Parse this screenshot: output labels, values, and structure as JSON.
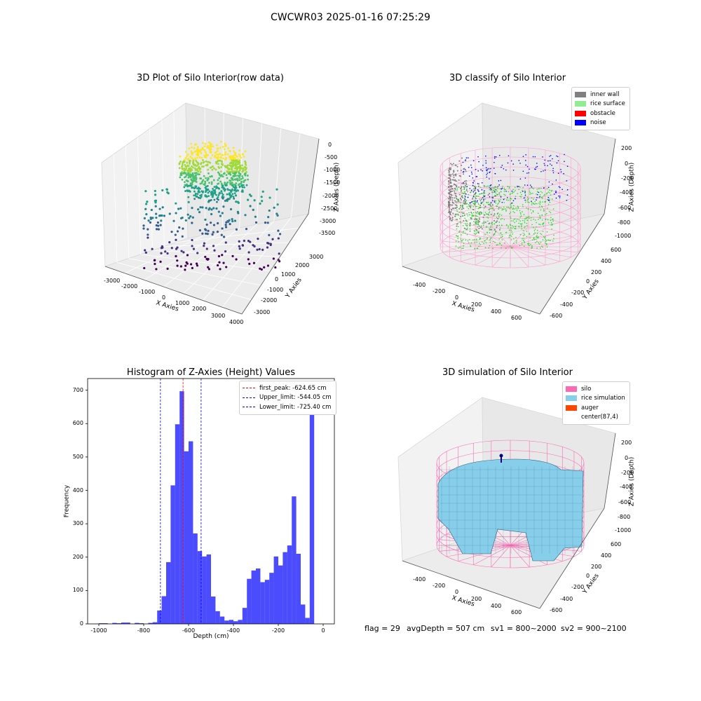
{
  "suptitle": "CWCWR03 2025-01-16 07:25:29",
  "footer": {
    "flag": "flag = 29",
    "avg_depth": "avgDepth = 507 cm",
    "sv1": "sv1 = 800~2000",
    "sv2": "sv2 = 900~2100"
  },
  "chart_data": [
    {
      "type": "scatter",
      "title": "3D Plot of Silo Interior(row data)",
      "xlabel": "X Axies",
      "ylabel": "Y Axies",
      "zlabel": "Z Axies (Depth)",
      "x_ticks": [
        "-3000",
        "-2000",
        "-1000",
        "0",
        "1000",
        "2000",
        "3000",
        "4000"
      ],
      "y_ticks": [
        "-3000",
        "-2000",
        "-1000",
        "0",
        "1000",
        "2000",
        "3000"
      ],
      "z_ticks": [
        "0",
        "-500",
        "-1000",
        "-1500",
        "-2000",
        "-2500",
        "-3000",
        "-3500"
      ],
      "colormap": "viridis"
    },
    {
      "type": "scatter",
      "title": "3D classify of Silo Interior",
      "xlabel": "X Axies",
      "ylabel": "Y Axies",
      "zlabel": "Z Axies (Depth)",
      "x_ticks": [
        "-400",
        "-200",
        "0",
        "200",
        "400",
        "600"
      ],
      "y_ticks": [
        "-600",
        "-400",
        "-200",
        "0",
        "200",
        "400",
        "600"
      ],
      "z_ticks": [
        "200",
        "0",
        "-200",
        "-400",
        "-600",
        "-800",
        "-1000"
      ],
      "legend": [
        {
          "name": "inner wall",
          "color": "#808080"
        },
        {
          "name": "rice surface",
          "color": "#90ee90"
        },
        {
          "name": "obstacle",
          "color": "#ff0000"
        },
        {
          "name": "noise",
          "color": "#0000ff"
        }
      ]
    },
    {
      "type": "bar",
      "title": "Histogram of Z-Axies (Height) Values",
      "xlabel": "Depth (cm)",
      "ylabel": "Frequency",
      "xlim": [
        -1050,
        50
      ],
      "ylim": [
        0,
        735
      ],
      "x_ticks": [
        -1000,
        -800,
        -600,
        -400,
        -200,
        0
      ],
      "y_ticks": [
        0,
        100,
        200,
        300,
        400,
        500,
        600,
        700
      ],
      "bin_width": 20,
      "bins_start": [
        -1000,
        -980,
        -960,
        -940,
        -920,
        -900,
        -880,
        -860,
        -840,
        -820,
        -800,
        -780,
        -760,
        -740,
        -720,
        -700,
        -680,
        -660,
        -640,
        -620,
        -600,
        -580,
        -560,
        -540,
        -520,
        -500,
        -480,
        -460,
        -440,
        -420,
        -400,
        -380,
        -360,
        -340,
        -320,
        -300,
        -280,
        -260,
        -240,
        -220,
        -200,
        -180,
        -160,
        -140,
        -120,
        -100,
        -80,
        -60,
        -40,
        -20,
        0
      ],
      "values": [
        2,
        2,
        0,
        3,
        2,
        4,
        4,
        0,
        3,
        2,
        0,
        3,
        5,
        40,
        83,
        185,
        415,
        598,
        697,
        517,
        547,
        271,
        218,
        202,
        208,
        82,
        38,
        22,
        10,
        12,
        8,
        12,
        48,
        135,
        160,
        166,
        125,
        132,
        153,
        202,
        175,
        215,
        235,
        382,
        210,
        58,
        18,
        657,
        0,
        0,
        0
      ],
      "color": "#0000ff",
      "lines": [
        {
          "name": "first_peak: -624.65 cm",
          "x": -624.65,
          "color": "#ff0000"
        },
        {
          "name": "Upper_limit: -544.05 cm",
          "x": -544.05,
          "color": "#0000ff"
        },
        {
          "name": "Lower_limit: -725.40 cm",
          "x": -725.4,
          "color": "#0000ff"
        }
      ]
    },
    {
      "type": "scatter",
      "title": "3D simulation of Silo Interior",
      "xlabel": "X Axies",
      "ylabel": "Y Axies",
      "zlabel": "Z Axies (Depth)",
      "x_ticks": [
        "-400",
        "-200",
        "0",
        "200",
        "400",
        "600"
      ],
      "y_ticks": [
        "-600",
        "-400",
        "-200",
        "0",
        "200",
        "400",
        "600"
      ],
      "z_ticks": [
        "200",
        "0",
        "-200",
        "-400",
        "-600",
        "-800",
        "-1000"
      ],
      "legend": [
        {
          "name": "silo",
          "color": "#ff69b4"
        },
        {
          "name": "rice simulation",
          "color": "#87ceeb"
        },
        {
          "name": "auger",
          "color": "#ff4500"
        },
        {
          "name": "center(87,4)",
          "color": "#ffffff"
        }
      ]
    }
  ]
}
